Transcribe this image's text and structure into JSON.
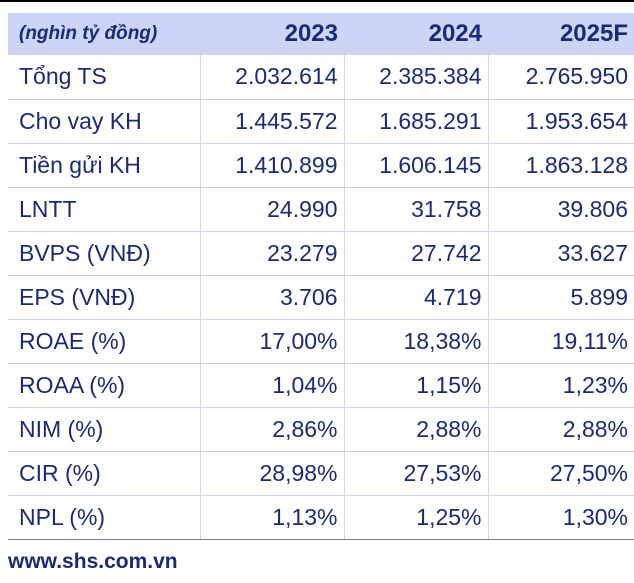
{
  "table": {
    "header": {
      "label": "(nghìn tỷ đồng)",
      "years": [
        "2023",
        "2024",
        "2025F"
      ]
    },
    "rows": [
      {
        "label": "Tổng TS",
        "values": [
          "2.032.614",
          "2.385.384",
          "2.765.950"
        ]
      },
      {
        "label": "Cho vay KH",
        "values": [
          "1.445.572",
          "1.685.291",
          "1.953.654"
        ]
      },
      {
        "label": "Tiền gửi KH",
        "values": [
          "1.410.899",
          "1.606.145",
          "1.863.128"
        ]
      },
      {
        "label": "LNTT",
        "values": [
          "24.990",
          "31.758",
          "39.806"
        ]
      },
      {
        "label": "BVPS (VNĐ)",
        "values": [
          "23.279",
          "27.742",
          "33.627"
        ]
      },
      {
        "label": "EPS (VNĐ)",
        "values": [
          "3.706",
          "4.719",
          "5.899"
        ]
      },
      {
        "label": "ROAE (%)",
        "values": [
          "17,00%",
          "18,38%",
          "19,11%"
        ]
      },
      {
        "label": "ROAA (%)",
        "values": [
          "1,04%",
          "1,15%",
          "1,23%"
        ]
      },
      {
        "label": "NIM (%)",
        "values": [
          "2,86%",
          "2,88%",
          "2,88%"
        ]
      },
      {
        "label": "CIR (%)",
        "values": [
          "28,98%",
          "27,53%",
          "27,50%"
        ]
      },
      {
        "label": "NPL (%)",
        "values": [
          "1,13%",
          "1,25%",
          "1,30%"
        ]
      }
    ]
  },
  "footer": {
    "source": "www.shs.com.vn"
  },
  "colors": {
    "header_background": "#ccd5f5",
    "text": "#1a2a78",
    "grid_line": "#d3d6e6"
  }
}
